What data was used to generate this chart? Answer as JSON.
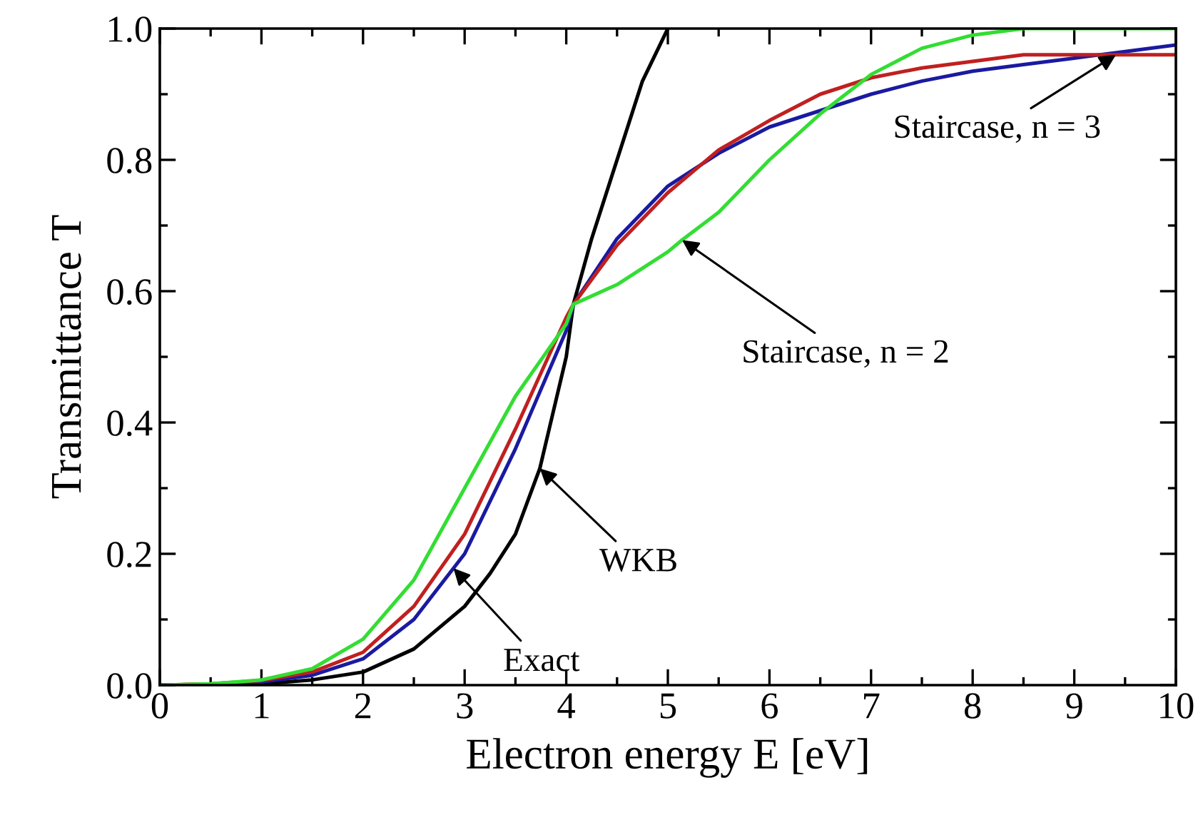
{
  "chart_data": {
    "type": "line",
    "xlabel": "Electron energy E [eV]",
    "ylabel": "Transmittance T",
    "xlim": [
      0,
      10
    ],
    "ylim": [
      0,
      1.0
    ],
    "xticks": [
      0,
      1,
      2,
      3,
      4,
      5,
      6,
      7,
      8,
      9,
      10
    ],
    "yticks": [
      {
        "value": 0,
        "label": "0.0"
      },
      0.2,
      0.4,
      0.6,
      0.8,
      {
        "value": 1,
        "label": "1.0"
      }
    ],
    "grid": false,
    "legend": false,
    "marker": "none",
    "line_style": "solid",
    "series": [
      {
        "color": "#000000",
        "x": [
          0,
          0.5,
          1,
          1.5,
          2,
          2.5,
          3,
          3.25,
          3.5,
          3.74,
          4,
          4.07,
          4.25,
          4.5,
          4.75,
          5
        ],
        "values": [
          0,
          0.001,
          0.002,
          0.008,
          0.02,
          0.055,
          0.12,
          0.17,
          0.23,
          0.33,
          0.5,
          0.58,
          0.68,
          0.8,
          0.92,
          1.0
        ]
      },
      {
        "color": "#1a1aa0",
        "x": [
          0,
          0.5,
          1,
          1.5,
          2,
          2.5,
          2.89,
          3,
          3.5,
          4,
          4.07,
          4.5,
          5,
          5.5,
          6,
          6.5,
          7,
          7.5,
          8,
          8.5,
          9,
          9.5,
          10
        ],
        "values": [
          0,
          0.001,
          0.005,
          0.015,
          0.04,
          0.1,
          0.178,
          0.2,
          0.36,
          0.54,
          0.58,
          0.68,
          0.76,
          0.81,
          0.85,
          0.875,
          0.9,
          0.92,
          0.935,
          0.945,
          0.955,
          0.965,
          0.975
        ]
      },
      {
        "color": "#c02020",
        "x": [
          0,
          0.5,
          1,
          1.5,
          2,
          2.5,
          3,
          3.5,
          4,
          4.07,
          4.5,
          5,
          5.5,
          6,
          6.5,
          7,
          7.5,
          8,
          8.5,
          9,
          9.41,
          10
        ],
        "values": [
          0,
          0.002,
          0.007,
          0.02,
          0.05,
          0.12,
          0.23,
          0.39,
          0.56,
          0.58,
          0.67,
          0.75,
          0.815,
          0.86,
          0.9,
          0.925,
          0.94,
          0.95,
          0.96,
          0.96,
          0.96,
          0.96
        ]
      },
      {
        "color": "#33dd33",
        "x": [
          0,
          0.5,
          1,
          1.5,
          2,
          2.5,
          3,
          3.5,
          4,
          4.07,
          4.5,
          5,
          5.14,
          5.5,
          6,
          6.5,
          7,
          7.5,
          8,
          8.5,
          9,
          9.5,
          10
        ],
        "values": [
          0,
          0.002,
          0.008,
          0.025,
          0.07,
          0.16,
          0.3,
          0.44,
          0.55,
          0.58,
          0.61,
          0.66,
          0.678,
          0.72,
          0.8,
          0.87,
          0.93,
          0.97,
          0.99,
          1.0,
          1.0,
          1.0,
          1.0
        ]
      }
    ],
    "annotations": [
      {
        "text": "WKB",
        "x": 3.74,
        "y": 0.33
      },
      {
        "text": "Exact",
        "x": 2.89,
        "y": 0.178
      },
      {
        "text": "Staircase, n = 2",
        "x": 5.14,
        "y": 0.678
      },
      {
        "text": "Staircase, n = 3",
        "x": 9.41,
        "y": 0.96
      }
    ]
  }
}
